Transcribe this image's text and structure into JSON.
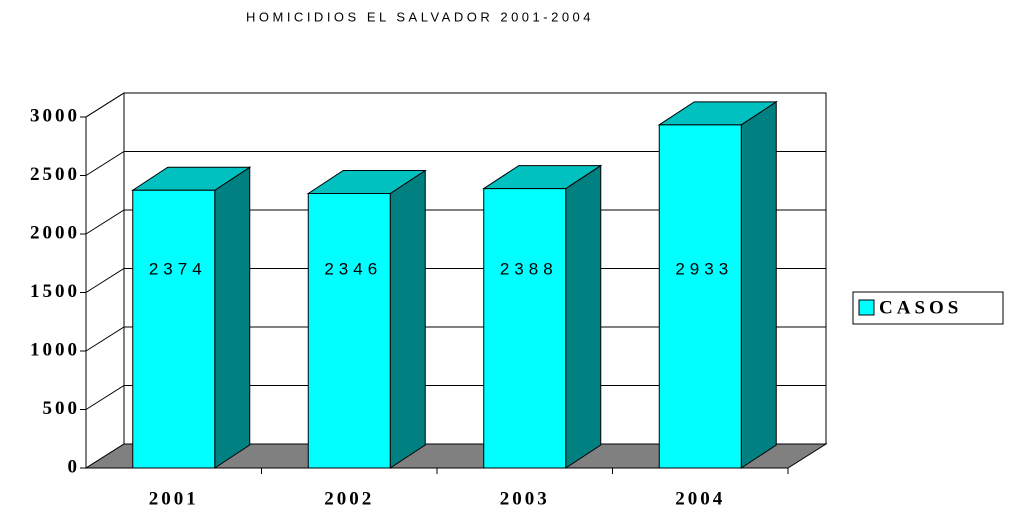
{
  "chart_data": {
    "type": "bar3d",
    "title": "HOMICIDIOS EL SALVADOR 2001-2004",
    "categories": [
      "2001",
      "2002",
      "2003",
      "2004"
    ],
    "series": [
      {
        "name": "CASOS",
        "color": "#00ffff",
        "values": [
          2374,
          2346,
          2388,
          2933
        ]
      }
    ],
    "ylim": [
      0,
      3000
    ],
    "yticks": [
      0,
      500,
      1000,
      1500,
      2000,
      2500,
      3000
    ],
    "grid": true,
    "legend": "right"
  }
}
